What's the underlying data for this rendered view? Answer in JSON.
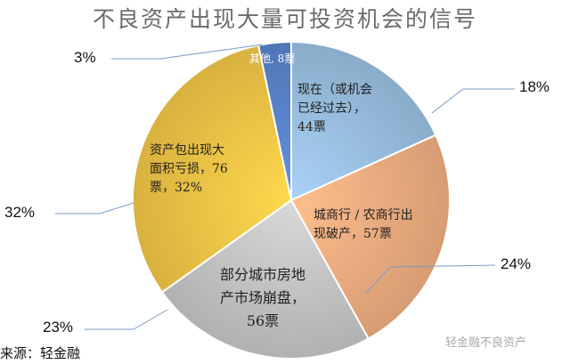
{
  "chart_data": {
    "type": "pie",
    "title": "不良资产出现大量可投资机会的信号",
    "slices": [
      {
        "label": "现在（或机会已经过去），44票",
        "value": 44,
        "percent_label": "18%",
        "color": "#9dc3e6"
      },
      {
        "label": "城商行 / 农商行出现破产，57票",
        "value": 57,
        "percent_label": "24%",
        "color": "#f4b183"
      },
      {
        "label": "部分城市房地产市场崩盘，56票",
        "value": 56,
        "percent_label": "23%",
        "color": "#c9c9c9"
      },
      {
        "label": "资产包出现大面积亏损，76票，32%",
        "value": 76,
        "percent_label": "32%",
        "color": "#f7c948"
      },
      {
        "label": "其他, 8票",
        "value": 8,
        "percent_label": "3%",
        "color": "#5b86cf"
      }
    ],
    "start_angle": "top",
    "direction": "clockwise"
  },
  "source": "来源：轻金融",
  "watermark": "轻金融不良资产"
}
